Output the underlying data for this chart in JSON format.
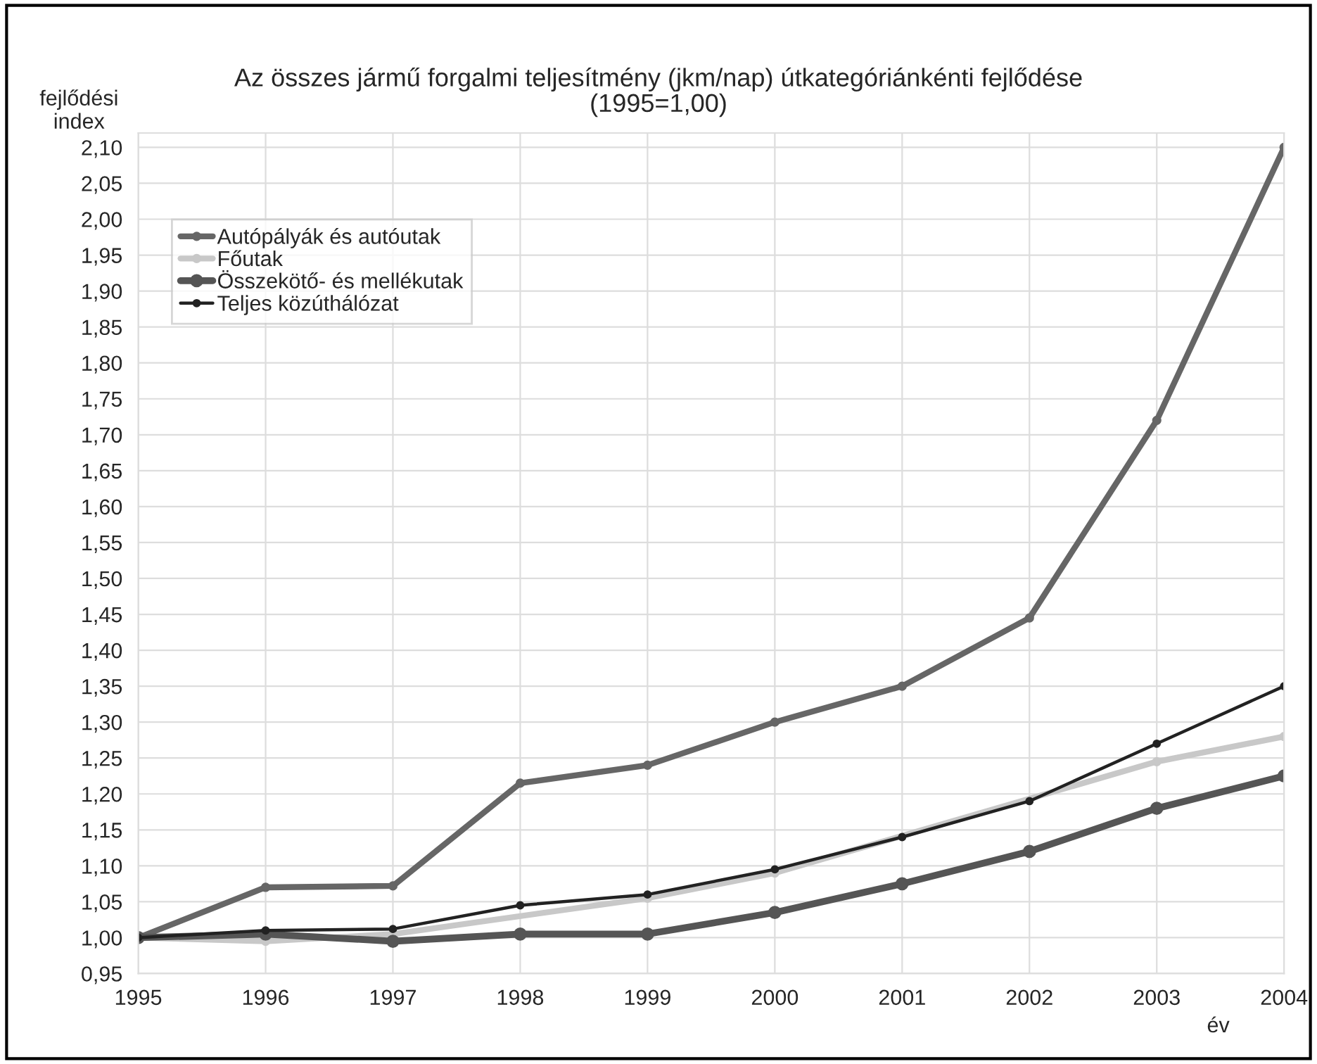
{
  "chart_data": {
    "type": "line",
    "title": "Az összes jármű forgalmi teljesítmény (jkm/nap) útkategóriánkénti fejlődése\n(1995=1,00)",
    "xlabel": "év",
    "ylabel": "fejlődési\nindex",
    "x": [
      1995,
      1996,
      1997,
      1998,
      1999,
      2000,
      2001,
      2002,
      2003,
      2004
    ],
    "series": [
      {
        "name": "Autópályák és autóutak",
        "color": "#666666",
        "values": [
          1.0,
          1.07,
          1.072,
          1.215,
          1.24,
          1.3,
          1.35,
          1.445,
          1.72,
          2.1
        ]
      },
      {
        "name": "Főutak",
        "color": "#c8c8c8",
        "values": [
          1.0,
          0.995,
          1.005,
          null,
          1.055,
          1.09,
          null,
          null,
          1.245,
          1.28
        ]
      },
      {
        "name": "Összekötő- és mellékutak",
        "color": "#555555",
        "values": [
          1.0,
          1.005,
          0.995,
          1.005,
          1.005,
          1.035,
          1.075,
          1.12,
          1.18,
          1.225
        ]
      },
      {
        "name": "Teljes közúthálózat",
        "color": "#222222",
        "values": [
          1.0,
          1.01,
          1.012,
          1.045,
          1.06,
          1.095,
          1.14,
          1.19,
          1.27,
          1.35
        ]
      }
    ],
    "xlim": [
      1995,
      2004
    ],
    "xticks": [
      1995,
      1996,
      1997,
      1998,
      1999,
      2000,
      2001,
      2002,
      2003,
      2004
    ],
    "ylim": [
      0.95,
      2.12
    ],
    "yticks": [
      {
        "value": 0.95,
        "label": "0,95"
      },
      {
        "value": 1.0,
        "label": "1,00"
      },
      {
        "value": 1.05,
        "label": "1,05"
      },
      {
        "value": 1.1,
        "label": "1,10"
      },
      {
        "value": 1.15,
        "label": "1,15"
      },
      {
        "value": 1.2,
        "label": "1,20"
      },
      {
        "value": 1.25,
        "label": "1,25"
      },
      {
        "value": 1.3,
        "label": "1,30"
      },
      {
        "value": 1.35,
        "label": "1,35"
      },
      {
        "value": 1.4,
        "label": "1,40"
      },
      {
        "value": 1.45,
        "label": "1,45"
      },
      {
        "value": 1.5,
        "label": "1,50"
      },
      {
        "value": 1.55,
        "label": "1,55"
      },
      {
        "value": 1.6,
        "label": "1,60"
      },
      {
        "value": 1.65,
        "label": "1,65"
      },
      {
        "value": 1.7,
        "label": "1,70"
      },
      {
        "value": 1.75,
        "label": "1,75"
      },
      {
        "value": 1.8,
        "label": "1,80"
      },
      {
        "value": 1.85,
        "label": "1,85"
      },
      {
        "value": 1.9,
        "label": "1,90"
      },
      {
        "value": 1.95,
        "label": "1,95"
      },
      {
        "value": 2.0,
        "label": "2,00"
      },
      {
        "value": 2.05,
        "label": "2,05"
      },
      {
        "value": 2.1,
        "label": "2,10"
      }
    ],
    "grid": true,
    "legend": "top left",
    "marker": "circle",
    "line_style": "solid"
  }
}
